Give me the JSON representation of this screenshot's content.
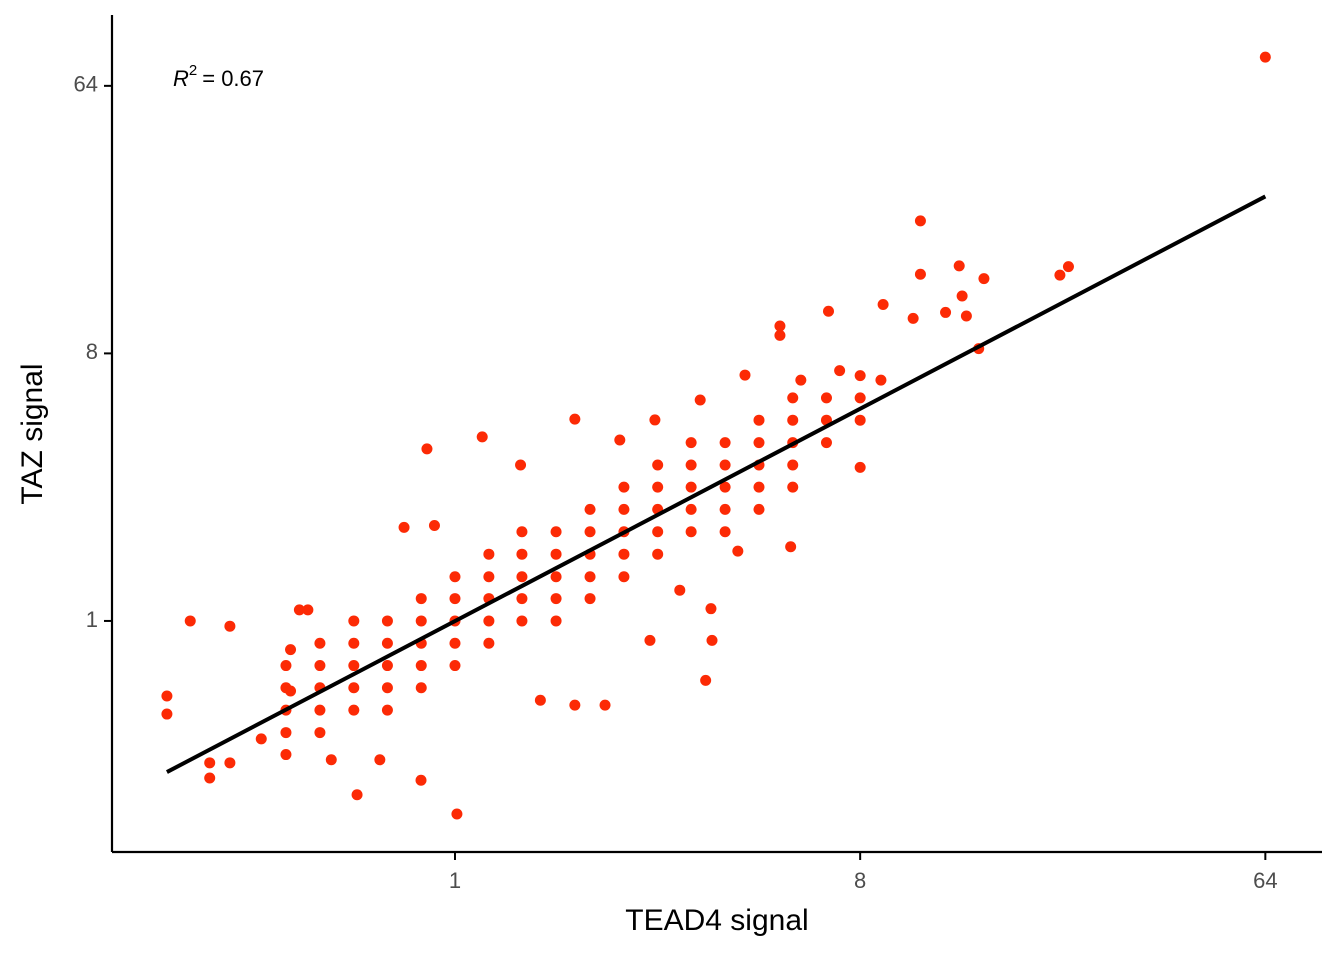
{
  "chart_data": {
    "type": "scatter",
    "x_label": "TEAD4 signal",
    "y_label": "TAZ signal",
    "annotation": {
      "symbol": "R",
      "exponent": "2",
      "text": "= 0.67"
    },
    "xscale": "log",
    "yscale": "log",
    "log_base": 2,
    "xlim": [
      0.172,
      85.6
    ],
    "ylim": [
      0.166,
      111
    ],
    "xticks": [
      1,
      8,
      64
    ],
    "yticks": [
      1,
      8,
      64
    ],
    "grid": false,
    "color": "#fc2a05",
    "x": [
      0.42,
      0.42,
      0.42,
      0.42,
      0.42,
      0.5,
      0.5,
      0.5,
      0.5,
      0.5,
      0.595,
      0.595,
      0.595,
      0.595,
      0.595,
      0.707,
      0.707,
      0.707,
      0.707,
      0.707,
      0.841,
      0.841,
      0.841,
      0.841,
      0.841,
      1,
      1,
      1,
      1,
      1,
      1.19,
      1.19,
      1.19,
      1.19,
      1.19,
      1.41,
      1.41,
      1.41,
      1.41,
      1.41,
      1.68,
      1.68,
      1.68,
      1.68,
      1.68,
      2,
      2,
      2,
      2,
      2,
      2.38,
      2.38,
      2.38,
      2.38,
      2.38,
      2.83,
      2.83,
      2.83,
      2.83,
      2.83,
      3.36,
      3.36,
      3.36,
      3.36,
      3.36,
      4,
      4,
      4,
      4,
      4,
      4.76,
      4.76,
      4.76,
      4.76,
      4.76,
      5.66,
      5.66,
      5.66,
      5.66,
      5.66,
      6.73,
      6.73,
      6.73,
      8,
      8,
      8,
      64,
      10.9,
      23.3,
      22.3,
      13.3,
      10.9,
      15.1,
      13.5,
      13.8,
      12.4,
      14.7,
      10.5,
      9.0,
      6.8,
      5.3,
      8.0,
      0.257,
      0.228,
      0.228,
      0.284,
      0.284,
      0.315,
      0.315,
      1.01,
      0.605,
      0.866,
      1.15,
      1.85,
      3.62,
      3.72,
      4.27,
      5.6,
      2.16,
      1.85,
      0.45,
      0.43,
      0.37,
      0.77,
      0.9,
      1.4,
      2.33,
      2.79,
      3.52,
      4.43,
      5.3,
      5.9,
      7.2,
      8.9,
      0.84,
      0.68,
      1.55,
      2.72,
      3.74,
      3.17,
      0.53,
      0.47,
      0.43
    ],
    "values": [
      0.354,
      0.42,
      0.5,
      0.595,
      0.707,
      0.42,
      0.5,
      0.595,
      0.707,
      0.841,
      0.5,
      0.595,
      0.707,
      0.841,
      1,
      0.5,
      0.595,
      0.707,
      0.841,
      1,
      0.595,
      0.707,
      0.841,
      1,
      1.19,
      0.707,
      0.841,
      1,
      1.19,
      1.41,
      0.841,
      1,
      1.19,
      1.41,
      1.68,
      1,
      1.19,
      1.41,
      1.68,
      2,
      1,
      1.19,
      1.41,
      1.68,
      2,
      1.19,
      1.41,
      1.68,
      2,
      2.38,
      1.41,
      1.68,
      2,
      2.38,
      2.83,
      1.68,
      2,
      2.38,
      2.83,
      3.36,
      2,
      2.38,
      2.83,
      3.36,
      4,
      2,
      2.38,
      2.83,
      3.36,
      4,
      2.38,
      2.83,
      3.36,
      4,
      4.76,
      2.83,
      3.36,
      4,
      4.76,
      5.66,
      4,
      4.76,
      5.66,
      4.76,
      5.66,
      6.73,
      80,
      22.4,
      15.7,
      14.7,
      15.8,
      14.8,
      14.3,
      12.5,
      10.7,
      11.0,
      8.3,
      10.5,
      11.7,
      11.1,
      9.9,
      3.3,
      1,
      0.558,
      0.485,
      0.332,
      0.295,
      0.96,
      0.332,
      0.223,
      0.259,
      3.81,
      4.18,
      4.8,
      0.63,
      1.1,
      1.72,
      1.78,
      0.52,
      0.52,
      1.09,
      0.58,
      0.4,
      2.07,
      2.1,
      3.36,
      4.08,
      4.77,
      5.57,
      6.76,
      9.2,
      6.5,
      7.0,
      6.5,
      0.29,
      0.34,
      0.54,
      0.86,
      0.86,
      1.27,
      0.34,
      1.09,
      0.8
    ],
    "fit_line": {
      "x": [
        0.228,
        64
      ],
      "values": [
        0.309,
        27.1
      ],
      "color": "#000000"
    }
  }
}
